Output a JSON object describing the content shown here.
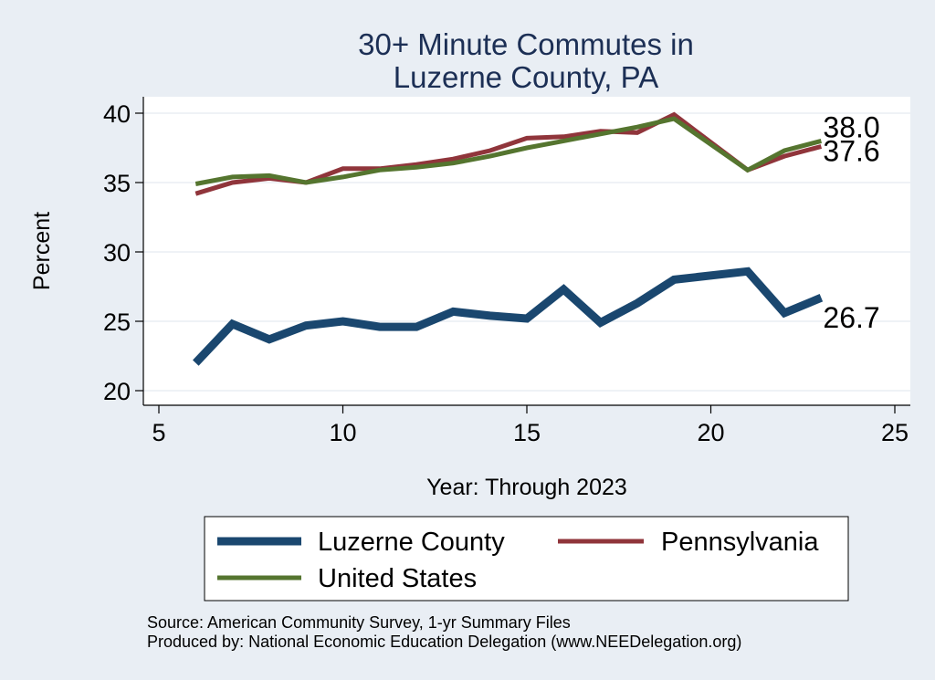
{
  "chart_data": {
    "type": "line",
    "title": [
      "30+ Minute Commutes in",
      "Luzerne County, PA"
    ],
    "xlabel": "Year: Through 2023",
    "ylabel": "Percent",
    "xlim": [
      5,
      25
    ],
    "ylim": [
      20,
      40
    ],
    "xticks": [
      5,
      10,
      15,
      20,
      25
    ],
    "yticks": [
      20,
      25,
      30,
      35,
      40
    ],
    "grid": "horizontal",
    "legend_position": "bottom",
    "series": [
      {
        "name": "Luzerne County",
        "color": "#1a476f",
        "weight": "thick",
        "x": [
          6,
          7,
          8,
          9,
          10,
          11,
          12,
          13,
          14,
          15,
          16,
          17,
          18,
          19,
          21,
          22,
          23
        ],
        "values": [
          22.0,
          24.8,
          23.7,
          24.7,
          25.0,
          24.6,
          24.6,
          25.7,
          25.4,
          25.2,
          27.3,
          24.9,
          26.3,
          28.0,
          28.6,
          25.6,
          26.7
        ],
        "end_label": "26.7"
      },
      {
        "name": "Pennsylvania",
        "color": "#90353b",
        "weight": "medium",
        "x": [
          6,
          7,
          8,
          9,
          10,
          11,
          12,
          13,
          14,
          15,
          16,
          17,
          18,
          19,
          21,
          22,
          23
        ],
        "values": [
          34.2,
          35.0,
          35.3,
          35.0,
          36.0,
          36.0,
          36.3,
          36.7,
          37.3,
          38.2,
          38.3,
          38.7,
          38.6,
          39.9,
          35.9,
          36.9,
          37.6
        ],
        "end_label": "37.6"
      },
      {
        "name": "United States",
        "color": "#55752f",
        "weight": "medium",
        "x": [
          6,
          7,
          8,
          9,
          10,
          11,
          12,
          13,
          14,
          15,
          16,
          17,
          18,
          19,
          21,
          22,
          23
        ],
        "values": [
          34.9,
          35.4,
          35.5,
          35.0,
          35.4,
          35.9,
          36.1,
          36.4,
          36.9,
          37.5,
          38.0,
          38.5,
          39.0,
          39.6,
          35.9,
          37.3,
          38.0
        ],
        "end_label": "38.0"
      }
    ]
  },
  "footer": {
    "source": "Source: American Community Survey, 1-yr Summary Files",
    "produced_by": "Produced by: National Economic Education Delegation (www.NEEDelegation.org)"
  }
}
